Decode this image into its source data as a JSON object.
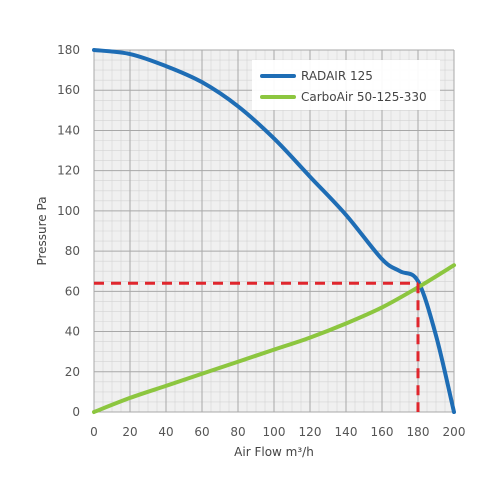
{
  "chart_data": {
    "type": "line",
    "xlabel": "Air Flow m³/h",
    "ylabel": "Pressure Pa",
    "xlim": [
      0,
      200
    ],
    "ylim": [
      0,
      180
    ],
    "x_ticks": [
      0,
      20,
      40,
      60,
      80,
      100,
      120,
      140,
      160,
      180,
      200
    ],
    "y_ticks": [
      0,
      20,
      40,
      60,
      80,
      100,
      120,
      140,
      160,
      180
    ],
    "grid": true,
    "minor_grid": true,
    "legend_position": "top-right",
    "series": [
      {
        "name": "RADAIR 125",
        "color": "#1e6db5",
        "x": [
          0,
          20,
          40,
          60,
          80,
          100,
          120,
          140,
          160,
          170,
          180,
          190,
          200
        ],
        "y": [
          180,
          178,
          172,
          164,
          152,
          136,
          117,
          98,
          76,
          70,
          65,
          38,
          0
        ]
      },
      {
        "name": "CarboAir 50-125-330",
        "color": "#8cc63f",
        "x": [
          0,
          20,
          40,
          60,
          80,
          100,
          120,
          140,
          160,
          180,
          200
        ],
        "y": [
          0,
          7,
          13,
          19,
          25,
          31,
          37,
          44,
          52,
          62,
          73
        ]
      }
    ],
    "annotations": [
      {
        "type": "operating-point",
        "x": 180,
        "y": 64,
        "color": "#e0262d",
        "style": "dashed"
      }
    ]
  }
}
